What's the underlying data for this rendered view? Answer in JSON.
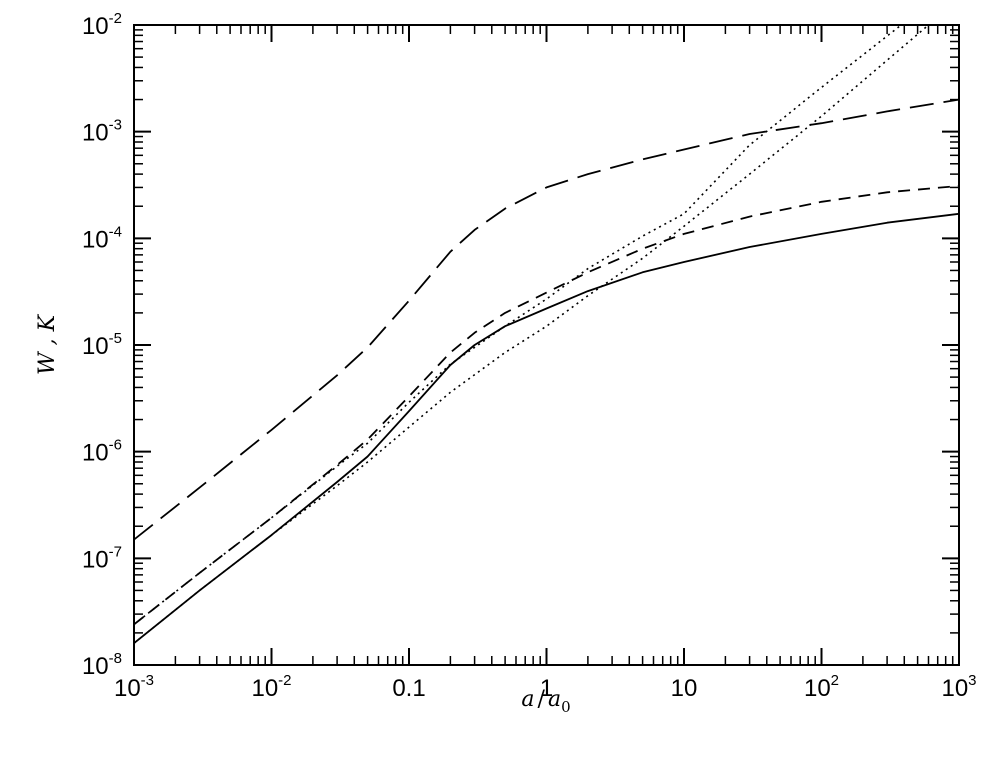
{
  "chart_data": {
    "type": "line",
    "title": "",
    "xlabel": "a/a0",
    "ylabel": "W , K",
    "xscale": "log",
    "yscale": "log",
    "xlim": [
      0.001,
      1000
    ],
    "ylim": [
      1e-08,
      0.01
    ],
    "grid": false,
    "legend": null,
    "x_ticks": [
      {
        "value": 0.001,
        "base": "10",
        "exp": "-3"
      },
      {
        "value": 0.01,
        "base": "10",
        "exp": "-2"
      },
      {
        "value": 0.1,
        "base": "0.1",
        "exp": ""
      },
      {
        "value": 1,
        "base": "1",
        "exp": ""
      },
      {
        "value": 10,
        "base": "10",
        "exp": ""
      },
      {
        "value": 100,
        "base": "10",
        "exp": "2"
      },
      {
        "value": 1000,
        "base": "10",
        "exp": "3"
      }
    ],
    "y_ticks": [
      {
        "value": 1e-08,
        "base": "10",
        "exp": "-8"
      },
      {
        "value": 1e-07,
        "base": "10",
        "exp": "-7"
      },
      {
        "value": 1e-06,
        "base": "10",
        "exp": "-6"
      },
      {
        "value": 1e-05,
        "base": "10",
        "exp": "-5"
      },
      {
        "value": 0.0001,
        "base": "10",
        "exp": "-4"
      },
      {
        "value": 0.001,
        "base": "10",
        "exp": "-3"
      },
      {
        "value": 0.01,
        "base": "10",
        "exp": "-2"
      }
    ],
    "series": [
      {
        "name": "long-dashed curve",
        "style": "long-dash",
        "x": [
          0.001,
          0.003,
          0.01,
          0.03,
          0.05,
          0.1,
          0.2,
          0.3,
          0.5,
          1,
          2,
          5,
          10,
          30,
          100,
          300,
          1000
        ],
        "y": [
          1.5e-07,
          4.6e-07,
          1.6e-06,
          5.2e-06,
          9.5e-06,
          2.6e-05,
          7.5e-05,
          0.00012,
          0.00019,
          0.0003,
          0.0004,
          0.00055,
          0.00068,
          0.00095,
          0.0012,
          0.00155,
          0.002
        ]
      },
      {
        "name": "short-dashed curve",
        "style": "short-dash",
        "x": [
          0.001,
          0.003,
          0.01,
          0.03,
          0.05,
          0.1,
          0.2,
          0.3,
          0.5,
          1,
          2,
          5,
          10,
          30,
          100,
          300,
          1000
        ],
        "y": [
          2.4e-08,
          7.3e-08,
          2.4e-07,
          7.5e-07,
          1.3e-06,
          3.3e-06,
          8.5e-06,
          1.3e-05,
          2e-05,
          3.1e-05,
          4.8e-05,
          8e-05,
          0.00011,
          0.00016,
          0.00022,
          0.00027,
          0.00031
        ]
      },
      {
        "name": "solid curve",
        "style": "solid",
        "x": [
          0.001,
          0.003,
          0.01,
          0.03,
          0.05,
          0.1,
          0.2,
          0.3,
          0.5,
          1,
          2,
          5,
          10,
          30,
          100,
          300,
          1000
        ],
        "y": [
          1.6e-08,
          5e-08,
          1.65e-07,
          5.2e-07,
          9e-07,
          2.4e-06,
          6.5e-06,
          1e-05,
          1.5e-05,
          2.2e-05,
          3.2e-05,
          4.8e-05,
          6e-05,
          8.3e-05,
          0.00011,
          0.00014,
          0.00017
        ]
      },
      {
        "name": "upper dotted curve",
        "style": "dotted",
        "x": [
          0.001,
          0.003,
          0.01,
          0.03,
          0.05,
          0.1,
          0.2,
          0.5,
          1,
          2,
          5,
          10,
          30,
          100,
          380
        ],
        "y": [
          2.4e-08,
          7.3e-08,
          2.4e-07,
          7.3e-07,
          1.2e-06,
          2.9e-06,
          6.6e-06,
          1.5e-05,
          2.7e-05,
          5.2e-05,
          0.000105,
          0.00017,
          0.00075,
          0.0026,
          0.01
        ]
      },
      {
        "name": "lower dotted curve",
        "style": "dotted",
        "x": [
          0.001,
          0.003,
          0.01,
          0.03,
          0.05,
          0.1,
          0.2,
          0.5,
          1,
          2,
          5,
          10,
          30,
          100,
          600
        ],
        "y": [
          1.6e-08,
          5e-08,
          1.65e-07,
          4.8e-07,
          8e-07,
          1.7e-06,
          3.6e-06,
          8.5e-06,
          1.5e-05,
          2.9e-05,
          6.5e-05,
          0.00013,
          0.0004,
          0.0014,
          0.01
        ]
      }
    ]
  },
  "axes": {
    "x_title_main": "a",
    "x_title_slash": "/",
    "x_title_denom": "a",
    "x_title_sub": "0",
    "y_title": "W , K"
  }
}
